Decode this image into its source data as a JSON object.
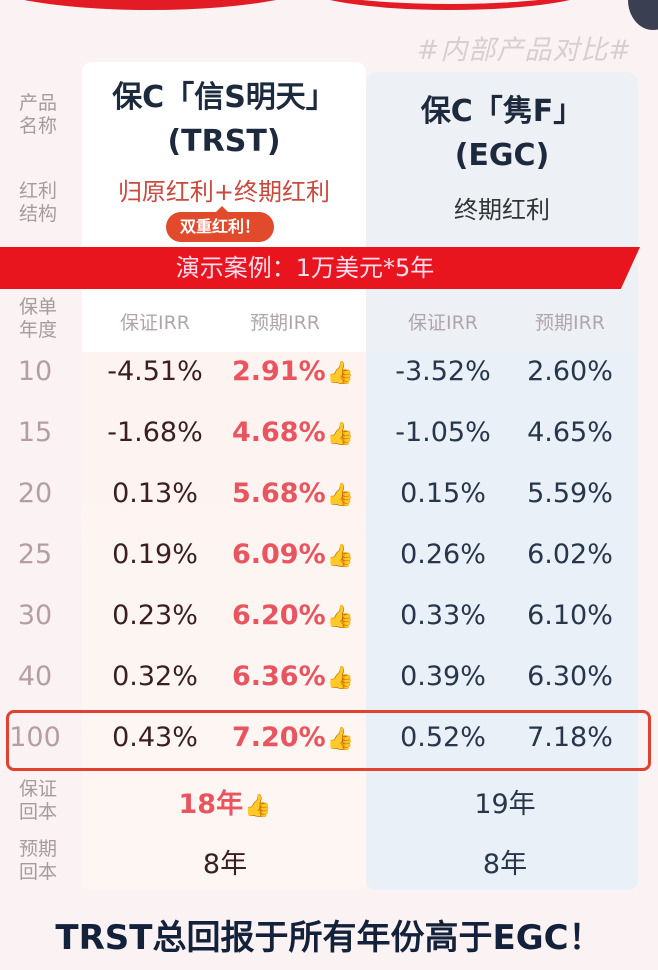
{
  "header_tag": "#内部产品对比#",
  "labels": {
    "product_name": "产品名称",
    "dividend_structure": "红利结构",
    "policy_year": "保单年度",
    "guaranteed_breakeven": "保证回本",
    "expected_breakeven": "预期回本"
  },
  "products": [
    {
      "name_line1": "保C「信S明天」",
      "name_line2": "(TRST)",
      "dividend": "归原红利+终期红利",
      "badge": "双重红利！"
    },
    {
      "name_line1": "保C「隽F」",
      "name_line2": "(EGC)",
      "dividend": "终期红利"
    }
  ],
  "banner": "演示案例：1万美元*5年",
  "columns": {
    "guaranteed_irr": "保证IRR",
    "expected_irr": "预期IRR"
  },
  "rows": [
    {
      "year": "10",
      "a_g": "-4.51%",
      "a_e": "2.91%",
      "b_g": "-3.52%",
      "b_e": "2.60%"
    },
    {
      "year": "15",
      "a_g": "-1.68%",
      "a_e": "4.68%",
      "b_g": "-1.05%",
      "b_e": "4.65%"
    },
    {
      "year": "20",
      "a_g": "0.13%",
      "a_e": "5.68%",
      "b_g": "0.15%",
      "b_e": "5.59%"
    },
    {
      "year": "25",
      "a_g": "0.19%",
      "a_e": "6.09%",
      "b_g": "0.26%",
      "b_e": "6.02%"
    },
    {
      "year": "30",
      "a_g": "0.23%",
      "a_e": "6.20%",
      "b_g": "0.33%",
      "b_e": "6.10%"
    },
    {
      "year": "40",
      "a_g": "0.32%",
      "a_e": "6.36%",
      "b_g": "0.39%",
      "b_e": "6.30%"
    },
    {
      "year": "100",
      "a_g": "0.43%",
      "a_e": "7.20%",
      "b_g": "0.52%",
      "b_e": "7.18%"
    }
  ],
  "highlighted_year": "100",
  "breakeven": {
    "a_guaranteed": "18年",
    "b_guaranteed": "19年",
    "a_expected": "8年",
    "b_expected": "8年"
  },
  "thumb_icon": "thumbs-up-heart-icon",
  "conclusion": "TRST总回报于所有年份高于EGC！",
  "colors": {
    "accent_red": "#e8141e",
    "highlight": "#e8555f",
    "navy": "#13223a"
  }
}
